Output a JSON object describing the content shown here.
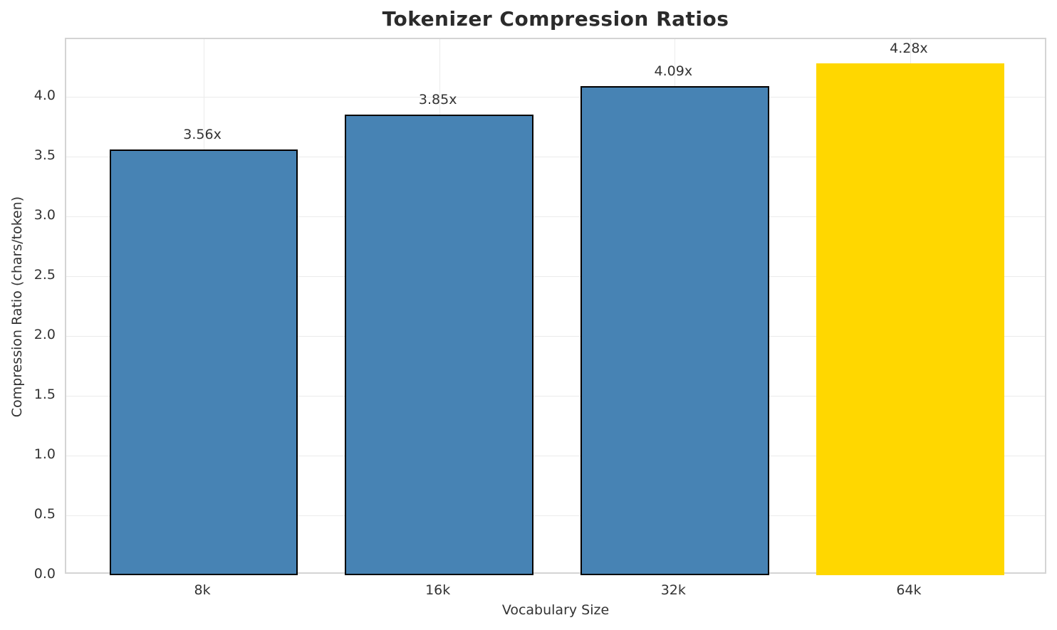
{
  "chart_data": {
    "type": "bar",
    "title": "Tokenizer Compression Ratios",
    "xlabel": "Vocabulary Size",
    "ylabel": "Compression Ratio (chars/token)",
    "categories": [
      "8k",
      "16k",
      "32k",
      "64k"
    ],
    "values": [
      3.56,
      3.85,
      4.09,
      4.28
    ],
    "bar_labels": [
      "3.56x",
      "3.85x",
      "4.09x",
      "4.28x"
    ],
    "bar_colors": [
      "#4783b4",
      "#4783b4",
      "#4783b4",
      "#ffd700"
    ],
    "bar_edge_colors": [
      "#000000",
      "#000000",
      "#000000",
      "#ffd700"
    ],
    "highlight_category": "64k",
    "ylim": [
      0,
      4.48
    ],
    "yticks": [
      0.0,
      0.5,
      1.0,
      1.5,
      2.0,
      2.5,
      3.0,
      3.5,
      4.0
    ],
    "ytick_labels": [
      "0.0",
      "0.5",
      "1.0",
      "1.5",
      "2.0",
      "2.5",
      "3.0",
      "3.5",
      "4.0"
    ],
    "grid": true,
    "grid_color": "#ebebeb",
    "spine_color": "#d4d4d4",
    "title_color": "#2b2b2b",
    "text_color": "#333333",
    "legend": null
  }
}
